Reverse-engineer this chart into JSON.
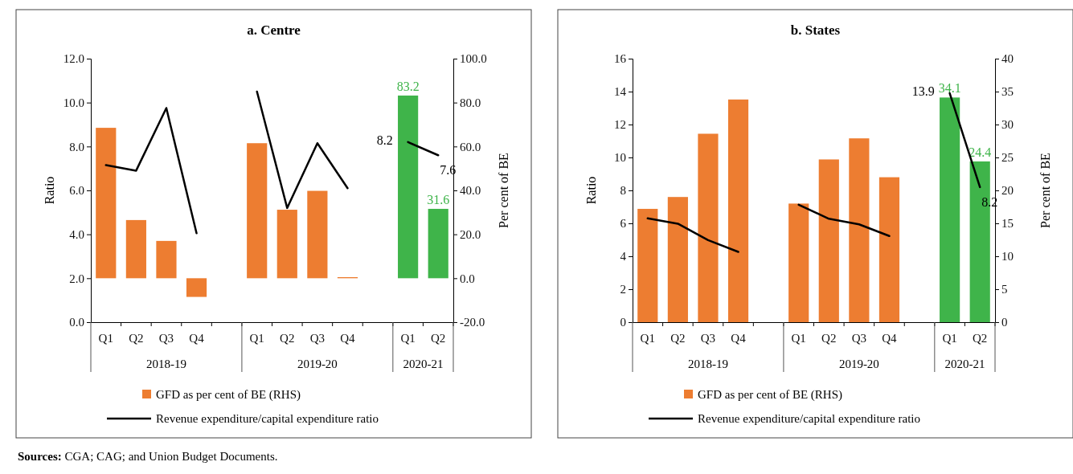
{
  "chart_data": [
    {
      "type": "bar",
      "title": "a. Centre",
      "ylabel": "Ratio",
      "y2label": "Per cent of BE",
      "legend": "bottom",
      "categories": [
        "Q1",
        "Q2",
        "Q3",
        "Q4",
        null,
        "Q1",
        "Q2",
        "Q3",
        "Q4",
        null,
        "Q1",
        "Q2"
      ],
      "ylim": [
        0,
        12
      ],
      "yticks": [
        {
          "value": 0,
          "label": "0.0"
        },
        {
          "value": 2,
          "label": "2.0"
        },
        {
          "value": 4,
          "label": "4.0"
        },
        {
          "value": 6,
          "label": "6.0"
        },
        {
          "value": 8,
          "label": "8.0"
        },
        {
          "value": 10,
          "label": "10.0"
        },
        {
          "value": 12,
          "label": "12.0"
        }
      ],
      "y2lim": [
        -20,
        100
      ],
      "y2ticks": [
        {
          "value": -20,
          "label": "-20.0"
        },
        {
          "value": 0,
          "label": "0.0"
        },
        {
          "value": 20,
          "label": "20.0"
        },
        {
          "value": 40,
          "label": "40.0"
        },
        {
          "value": 60,
          "label": "60.0"
        },
        {
          "value": 80,
          "label": "80.0"
        },
        {
          "value": 100,
          "label": "100.0"
        }
      ],
      "series": [
        {
          "axis": "y2",
          "name": "GFD as per cent of BE (RHS)",
          "color": "#ed7d31",
          "colors": [
            "#ed7d31",
            "#ed7d31",
            "#ed7d31",
            "#ed7d31",
            null,
            "#ed7d31",
            "#ed7d31",
            "#ed7d31",
            "#ed7d31",
            null,
            "#3fb44a",
            "#3fb44a"
          ],
          "values": [
            68.5,
            26.5,
            17,
            -8.5,
            null,
            61.5,
            31.2,
            39.8,
            0.5,
            null,
            83.2,
            31.6
          ],
          "value_labels": [
            null,
            null,
            null,
            null,
            null,
            null,
            null,
            null,
            null,
            null,
            "83.2",
            "31.6"
          ]
        },
        {
          "type": "line",
          "axis": "y",
          "name": "Revenue expenditure/capital expenditure ratio",
          "color": "#000000",
          "values": [
            7.15,
            6.9,
            9.75,
            4.05,
            null,
            10.5,
            5.2,
            8.15,
            6.1,
            null,
            8.2,
            7.6
          ],
          "value_labels": [
            null,
            null,
            null,
            null,
            null,
            null,
            null,
            null,
            null,
            null,
            "8.2",
            "7.6"
          ]
        }
      ],
      "annotations": [
        "2018-19",
        "2019-20",
        "2020-21",
        "Sources: CGA; CAG; and Union Budget Documents."
      ]
    },
    {
      "type": "bar",
      "title": "b. States",
      "ylabel": "Ratio",
      "y2label": "Per cent of BE",
      "legend": "bottom",
      "categories": [
        "Q1",
        "Q2",
        "Q3",
        "Q4",
        null,
        "Q1",
        "Q2",
        "Q3",
        "Q4",
        null,
        "Q1",
        "Q2"
      ],
      "ylim": [
        0,
        16
      ],
      "yticks": [
        0,
        2,
        4,
        6,
        8,
        10,
        12,
        14,
        16
      ],
      "y2lim": [
        0,
        40
      ],
      "y2ticks": [
        0,
        5,
        10,
        15,
        20,
        25,
        30,
        35,
        40
      ],
      "series": [
        {
          "axis": "y2",
          "name": "GFD as per cent of BE (RHS)",
          "color": "#ed7d31",
          "colors": [
            "#ed7d31",
            "#ed7d31",
            "#ed7d31",
            "#ed7d31",
            null,
            "#ed7d31",
            "#ed7d31",
            "#ed7d31",
            "#ed7d31",
            null,
            "#3fb44a",
            "#3fb44a"
          ],
          "values": [
            17.2,
            19.0,
            28.6,
            33.8,
            null,
            18.0,
            24.7,
            27.9,
            22.0,
            null,
            34.1,
            24.4
          ],
          "value_labels": [
            null,
            null,
            null,
            null,
            null,
            null,
            null,
            null,
            null,
            null,
            "34.1",
            "24.4"
          ]
        },
        {
          "type": "line",
          "axis": "y",
          "name": "Revenue expenditure/capital expenditure ratio",
          "color": "#000000",
          "values": [
            6.3,
            5.98,
            4.98,
            4.27,
            null,
            7.13,
            6.28,
            5.94,
            5.23,
            null,
            13.9,
            8.2
          ],
          "value_labels": [
            null,
            null,
            null,
            null,
            null,
            null,
            null,
            null,
            null,
            null,
            "13.9",
            "8.2"
          ]
        }
      ],
      "annotations": [
        "2018-19",
        "2019-20",
        "2020-21"
      ]
    }
  ]
}
